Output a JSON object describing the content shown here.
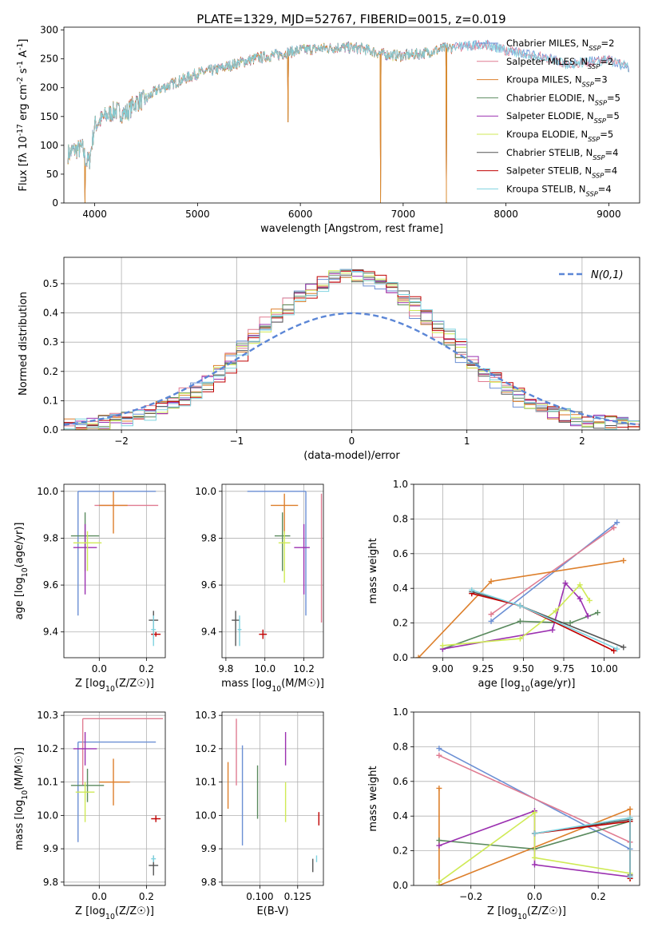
{
  "figure": {
    "title": "PLATE=1329, MJD=52767, FIBERID=0015, z=0.019"
  },
  "model_colors": [
    "#6b8fd4",
    "#e07b91",
    "#dd7f2b",
    "#5a8a5e",
    "#9b30b0",
    "#cfea55",
    "#555555",
    "#c00000",
    "#7fd3e0"
  ],
  "chart_data": [
    {
      "id": "spectrum",
      "type": "line",
      "xlabel": "wavelength [Angstrom, rest frame]",
      "ylabel": "Flux [fλ 10^-17 erg cm^-2 s^-1 A^-1]",
      "xlim": [
        3700,
        9300
      ],
      "ylim": [
        0,
        305
      ],
      "xticks": [
        4000,
        5000,
        6000,
        7000,
        8000,
        9000
      ],
      "yticks": [
        0,
        50,
        100,
        150,
        200,
        250,
        300
      ],
      "grid": false,
      "legend_position": "top-right",
      "legend": [
        "Chabrier MILES, N_SSP=2",
        "Salpeter MILES, N_SSP=2",
        "Kroupa MILES, N_SSP=3",
        "Chabrier ELODIE, N_SSP=5",
        "Salpeter ELODIE, N_SSP=5",
        "Kroupa ELODIE, N_SSP=5",
        "Chabrier STELIB, N_SSP=4",
        "Salpeter STELIB, N_SSP=4",
        "Kroupa STELIB, N_SSP=4"
      ],
      "continuum": {
        "x": [
          3740,
          3800,
          3880,
          3920,
          3950,
          4000,
          4100,
          4200,
          4300,
          4400,
          4500,
          4600,
          4800,
          5000,
          5200,
          5400,
          5600,
          5800,
          6000,
          6200,
          6400,
          6600,
          6800,
          7000,
          7200,
          7400,
          7600,
          7800,
          8000,
          8200,
          8400,
          8600,
          8800,
          9000,
          9200
        ],
        "y": [
          85,
          92,
          95,
          70,
          75,
          135,
          150,
          160,
          155,
          175,
          180,
          195,
          210,
          225,
          232,
          243,
          252,
          258,
          265,
          268,
          270,
          268,
          258,
          255,
          260,
          268,
          272,
          275,
          265,
          258,
          252,
          240,
          245,
          248,
          235
        ]
      },
      "dropouts": [
        {
          "x": 3905,
          "y": 0
        },
        {
          "x": 5880,
          "y": 140
        },
        {
          "x": 6780,
          "y": 0
        },
        {
          "x": 7420,
          "y": 0
        }
      ]
    },
    {
      "id": "residual-histogram",
      "type": "step",
      "xlabel": "(data-model)/error",
      "ylabel": "Normed distribution",
      "xlim": [
        -2.5,
        2.5
      ],
      "ylim": [
        0,
        0.59
      ],
      "xticks": [
        -2,
        -1,
        0,
        1,
        2
      ],
      "yticks": [
        0.0,
        0.1,
        0.2,
        0.3,
        0.4,
        0.5
      ],
      "grid": true,
      "legend_position": "top-right",
      "reference_label": "N(0,1)",
      "reference": {
        "mean": 0,
        "sigma": 1
      },
      "bin_width": 0.1,
      "peak": 0.52,
      "sigma_estimate": 0.8
    },
    {
      "id": "age-vs-Z",
      "type": "errorbar",
      "xlabel": "Z [log10(Z/Z☉)]",
      "ylabel": "age [log10(age/yr)]",
      "xlim": [
        -0.15,
        0.28
      ],
      "ylim": [
        9.29,
        10.03
      ],
      "xticks": [
        0.0,
        0.2
      ],
      "yticks": [
        9.4,
        9.6,
        9.8,
        10.0
      ],
      "grid": true,
      "points": [
        {
          "x": -0.09,
          "y": 10.0,
          "xerr": [
            0.0,
            0.33
          ],
          "yerr": [
            0.53,
            0.0
          ]
        },
        {
          "x": -0.02,
          "y": 9.94,
          "xerr": [
            0.0,
            0.27
          ],
          "yerr": [
            0.0,
            0.0
          ]
        },
        {
          "x": 0.06,
          "y": 9.94,
          "xerr": [
            0.06,
            0.06
          ],
          "yerr": [
            0.12,
            0.06
          ]
        },
        {
          "x": -0.06,
          "y": 9.81,
          "xerr": [
            0.06,
            0.06
          ],
          "yerr": [
            0.15,
            0.1
          ]
        },
        {
          "x": -0.06,
          "y": 9.76,
          "xerr": [
            0.05,
            0.05
          ],
          "yerr": [
            0.2,
            0.1
          ]
        },
        {
          "x": -0.05,
          "y": 9.78,
          "xerr": [
            0.06,
            0.06
          ],
          "yerr": [
            0.12,
            0.05
          ]
        },
        {
          "x": 0.23,
          "y": 9.45,
          "xerr": [
            0.02,
            0.02
          ],
          "yerr": [
            0.08,
            0.04
          ]
        },
        {
          "x": 0.24,
          "y": 9.39,
          "xerr": [
            0.02,
            0.02
          ],
          "yerr": [
            0.01,
            0.01
          ]
        },
        {
          "x": 0.23,
          "y": 9.41,
          "xerr": [
            0.01,
            0.01
          ],
          "yerr": [
            0.07,
            0.06
          ]
        }
      ]
    },
    {
      "id": "age-vs-mass",
      "type": "errorbar",
      "xlabel": "mass [log10(M/M☉)]",
      "ylabel": "",
      "xlim": [
        9.78,
        10.3
      ],
      "ylim": [
        9.29,
        10.03
      ],
      "xticks": [
        9.8,
        10.0,
        10.2
      ],
      "yticks": [
        9.4,
        9.6,
        9.8,
        10.0
      ],
      "grid": true,
      "points": [
        {
          "x": 10.21,
          "y": 10.0,
          "xerr": [
            0.3,
            0.0
          ],
          "yerr": [
            0.53,
            0.0
          ]
        },
        {
          "x": 10.29,
          "y": 9.94,
          "xerr": [
            0.0,
            0.0
          ],
          "yerr": [
            0.5,
            0.05
          ]
        },
        {
          "x": 10.1,
          "y": 9.94,
          "xerr": [
            0.07,
            0.07
          ],
          "yerr": [
            0.12,
            0.05
          ]
        },
        {
          "x": 10.09,
          "y": 9.81,
          "xerr": [
            0.04,
            0.04
          ],
          "yerr": [
            0.15,
            0.1
          ]
        },
        {
          "x": 10.2,
          "y": 9.76,
          "xerr": [
            0.05,
            0.03
          ],
          "yerr": [
            0.2,
            0.1
          ]
        },
        {
          "x": 10.1,
          "y": 9.78,
          "xerr": [
            0.03,
            0.03
          ],
          "yerr": [
            0.17,
            0.05
          ]
        },
        {
          "x": 9.85,
          "y": 9.45,
          "xerr": [
            0.02,
            0.02
          ],
          "yerr": [
            0.11,
            0.04
          ]
        },
        {
          "x": 9.99,
          "y": 9.39,
          "xerr": [
            0.02,
            0.02
          ],
          "yerr": [
            0.02,
            0.02
          ]
        },
        {
          "x": 9.87,
          "y": 9.41,
          "xerr": [
            0.01,
            0.01
          ],
          "yerr": [
            0.07,
            0.06
          ]
        }
      ]
    },
    {
      "id": "mass-weight-vs-age",
      "type": "line",
      "xlabel": "age [log10(age/yr)]",
      "ylabel": "mass weight",
      "xlim": [
        8.82,
        10.22
      ],
      "ylim": [
        0.0,
        1.0
      ],
      "xticks": [
        9.0,
        9.25,
        9.5,
        9.75,
        10.0
      ],
      "yticks": [
        0.0,
        0.2,
        0.4,
        0.6,
        0.8,
        1.0
      ],
      "grid": true,
      "series": [
        {
          "x": [
            9.3,
            10.08
          ],
          "y": [
            0.21,
            0.78
          ]
        },
        {
          "x": [
            9.3,
            10.06
          ],
          "y": [
            0.25,
            0.75
          ]
        },
        {
          "x": [
            8.85,
            9.3,
            10.12
          ],
          "y": [
            0.0,
            0.44,
            0.56
          ]
        },
        {
          "x": [
            9.0,
            9.48,
            9.79,
            9.96
          ],
          "y": [
            0.05,
            0.21,
            0.2,
            0.26
          ]
        },
        {
          "x": [
            9.0,
            9.68,
            9.76,
            9.85,
            9.9
          ],
          "y": [
            0.05,
            0.16,
            0.43,
            0.34,
            0.24
          ]
        },
        {
          "x": [
            9.0,
            9.48,
            9.7,
            9.85,
            9.91
          ],
          "y": [
            0.07,
            0.11,
            0.27,
            0.42,
            0.33
          ]
        },
        {
          "x": [
            9.18,
            9.48,
            10.12
          ],
          "y": [
            0.38,
            0.3,
            0.06
          ]
        },
        {
          "x": [
            9.18,
            9.48,
            10.06
          ],
          "y": [
            0.37,
            0.3,
            0.04
          ]
        },
        {
          "x": [
            9.18,
            9.48,
            10.08
          ],
          "y": [
            0.39,
            0.3,
            0.05
          ]
        }
      ]
    },
    {
      "id": "mass-vs-Z",
      "type": "errorbar",
      "xlabel": "Z [log10(Z/Z☉)]",
      "ylabel": "mass [log10(M/M☉)]",
      "xlim": [
        -0.15,
        0.28
      ],
      "ylim": [
        9.79,
        10.31
      ],
      "xticks": [
        0.0,
        0.2
      ],
      "yticks": [
        9.8,
        9.9,
        10.0,
        10.1,
        10.2,
        10.3
      ],
      "grid": true,
      "points": [
        {
          "x": -0.09,
          "y": 10.22,
          "xerr": [
            0.0,
            0.33
          ],
          "yerr": [
            0.3,
            0.0
          ]
        },
        {
          "x": -0.07,
          "y": 10.29,
          "xerr": [
            0.0,
            0.34
          ],
          "yerr": [
            0.2,
            0.0
          ]
        },
        {
          "x": 0.06,
          "y": 10.1,
          "xerr": [
            0.06,
            0.07
          ],
          "yerr": [
            0.07,
            0.07
          ]
        },
        {
          "x": -0.05,
          "y": 10.09,
          "xerr": [
            0.07,
            0.07
          ],
          "yerr": [
            0.05,
            0.05
          ]
        },
        {
          "x": -0.06,
          "y": 10.2,
          "xerr": [
            0.05,
            0.05
          ],
          "yerr": [
            0.05,
            0.05
          ]
        },
        {
          "x": -0.06,
          "y": 10.07,
          "xerr": [
            0.04,
            0.04
          ],
          "yerr": [
            0.09,
            0.03
          ]
        },
        {
          "x": 0.23,
          "y": 9.85,
          "xerr": [
            0.02,
            0.02
          ],
          "yerr": [
            0.03,
            0.03
          ]
        },
        {
          "x": 0.24,
          "y": 9.99,
          "xerr": [
            0.02,
            0.02
          ],
          "yerr": [
            0.01,
            0.01
          ]
        },
        {
          "x": 0.23,
          "y": 9.87,
          "xerr": [
            0.01,
            0.01
          ],
          "yerr": [
            0.01,
            0.01
          ]
        }
      ]
    },
    {
      "id": "mass-vs-ebv",
      "type": "errorbar",
      "xlabel": "E(B-V)",
      "ylabel": "",
      "xlim": [
        0.075,
        0.142
      ],
      "ylim": [
        9.79,
        10.31
      ],
      "xticks": [
        0.1,
        0.125
      ],
      "yticks": [
        9.8,
        9.9,
        10.0,
        10.1,
        10.2,
        10.3
      ],
      "grid": true,
      "points": [
        {
          "x": 0.0885,
          "y": 10.21,
          "xerr": [
            0,
            0
          ],
          "yerr": [
            0.3,
            0.0
          ]
        },
        {
          "x": 0.0845,
          "y": 10.29,
          "xerr": [
            0,
            0
          ],
          "yerr": [
            0.2,
            0.0
          ]
        },
        {
          "x": 0.079,
          "y": 10.1,
          "xerr": [
            0,
            0
          ],
          "yerr": [
            0.08,
            0.06
          ]
        },
        {
          "x": 0.0985,
          "y": 10.09,
          "xerr": [
            0,
            0
          ],
          "yerr": [
            0.1,
            0.06
          ]
        },
        {
          "x": 0.117,
          "y": 10.2,
          "xerr": [
            0,
            0
          ],
          "yerr": [
            0.05,
            0.05
          ]
        },
        {
          "x": 0.117,
          "y": 10.07,
          "xerr": [
            0,
            0
          ],
          "yerr": [
            0.09,
            0.03
          ]
        },
        {
          "x": 0.135,
          "y": 9.85,
          "xerr": [
            0,
            0
          ],
          "yerr": [
            0.02,
            0.02
          ]
        },
        {
          "x": 0.139,
          "y": 9.99,
          "xerr": [
            0,
            0
          ],
          "yerr": [
            0.02,
            0.02
          ]
        },
        {
          "x": 0.1375,
          "y": 9.87,
          "xerr": [
            0,
            0
          ],
          "yerr": [
            0.01,
            0.01
          ]
        }
      ]
    },
    {
      "id": "mass-weight-vs-Z",
      "type": "line",
      "xlabel": "Z [log10(Z/Z☉)]",
      "ylabel": "mass weight",
      "xlim": [
        -0.38,
        0.33
      ],
      "ylim": [
        0.0,
        1.0
      ],
      "xticks": [
        -0.2,
        0.0,
        0.2
      ],
      "yticks": [
        0.0,
        0.2,
        0.4,
        0.6,
        0.8,
        1.0
      ],
      "grid": true,
      "series": [
        {
          "x": [
            -0.3,
            0.3
          ],
          "y": [
            0.79,
            0.21
          ]
        },
        {
          "x": [
            -0.3,
            0.3
          ],
          "y": [
            0.75,
            0.25
          ]
        },
        {
          "x": [
            -0.3,
            -0.3,
            0.3,
            0.3
          ],
          "y": [
            0.56,
            0.0,
            0.44,
            0.04
          ]
        },
        {
          "x": [
            -0.3,
            0.0,
            0.3,
            0.3
          ],
          "y": [
            0.26,
            0.21,
            0.37,
            0.05
          ]
        },
        {
          "x": [
            -0.3,
            0.0,
            0.0,
            0.3
          ],
          "y": [
            0.23,
            0.43,
            0.12,
            0.05
          ]
        },
        {
          "x": [
            -0.3,
            0.0,
            0.0,
            0.3
          ],
          "y": [
            0.02,
            0.42,
            0.16,
            0.07
          ]
        },
        {
          "x": [
            0.0,
            0.3,
            0.3
          ],
          "y": [
            0.3,
            0.38,
            0.06
          ]
        },
        {
          "x": [
            0.0,
            0.3,
            0.3
          ],
          "y": [
            0.3,
            0.37,
            0.04
          ]
        },
        {
          "x": [
            0.0,
            0.3,
            0.3
          ],
          "y": [
            0.3,
            0.39,
            0.05
          ]
        }
      ]
    }
  ]
}
